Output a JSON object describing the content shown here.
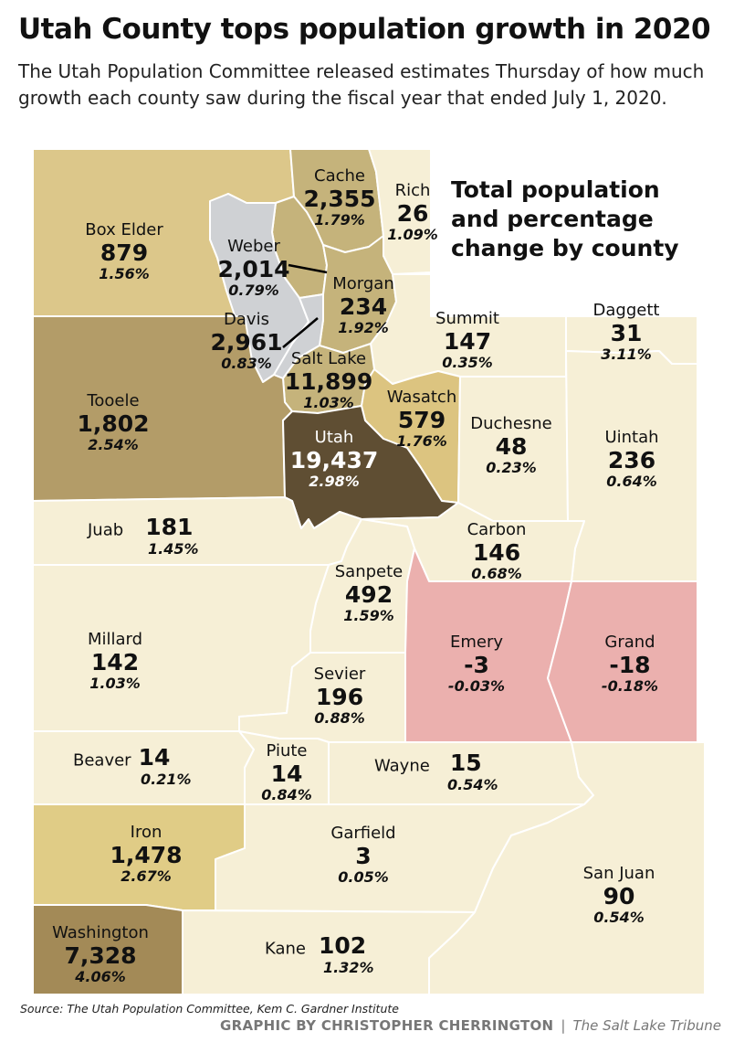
{
  "header": {
    "title": "Utah County tops population growth in 2020",
    "subtitle": "The Utah Population Committee released estimates Thursday of how much growth each county saw during the fiscal year that ended  July 1, 2020.",
    "legend_title_1": "Total population",
    "legend_title_2": "and percentage",
    "legend_title_3": "change by county"
  },
  "colors": {
    "lightest": "#f6efd6",
    "light": "#e9d892",
    "medium_light": "#dcc480",
    "medium": "#c5b37b",
    "medium_dark": "#b39c5c",
    "dark": "#a38a57",
    "darkest": "#5f4e33",
    "gray": "#cfd1d4",
    "negative": "#ebb0ae"
  },
  "counties": {
    "cache": {
      "name": "Cache",
      "value": "2,355",
      "pct": "1.79%"
    },
    "rich": {
      "name": "Rich",
      "value": "26",
      "pct": "1.09%"
    },
    "box_elder": {
      "name": "Box Elder",
      "value": "879",
      "pct": "1.56%"
    },
    "weber": {
      "name": "Weber",
      "value": "2,014",
      "pct": "0.79%"
    },
    "morgan": {
      "name": "Morgan",
      "value": "234",
      "pct": "1.92%"
    },
    "davis": {
      "name": "Davis",
      "value": "2,961",
      "pct": "0.83%"
    },
    "summit": {
      "name": "Summit",
      "value": "147",
      "pct": "0.35%"
    },
    "daggett": {
      "name": "Daggett",
      "value": "31",
      "pct": "3.11%"
    },
    "salt_lake": {
      "name": "Salt Lake",
      "value": "11,899",
      "pct": "1.03%"
    },
    "tooele": {
      "name": "Tooele",
      "value": "1,802",
      "pct": "2.54%"
    },
    "wasatch": {
      "name": "Wasatch",
      "value": "579",
      "pct": "1.76%"
    },
    "utah": {
      "name": "Utah",
      "value": "19,437",
      "pct": "2.98%"
    },
    "duchesne": {
      "name": "Duchesne",
      "value": "48",
      "pct": "0.23%"
    },
    "uintah": {
      "name": "Uintah",
      "value": "236",
      "pct": "0.64%"
    },
    "juab": {
      "name": "Juab",
      "value": "181",
      "pct": "1.45%"
    },
    "carbon": {
      "name": "Carbon",
      "value": "146",
      "pct": "0.68%"
    },
    "sanpete": {
      "name": "Sanpete",
      "value": "492",
      "pct": "1.59%"
    },
    "millard": {
      "name": "Millard",
      "value": "142",
      "pct": "1.03%"
    },
    "emery": {
      "name": "Emery",
      "value": "-3",
      "pct": "-0.03%"
    },
    "grand": {
      "name": "Grand",
      "value": "-18",
      "pct": "-0.18%"
    },
    "sevier": {
      "name": "Sevier",
      "value": "196",
      "pct": "0.88%"
    },
    "beaver": {
      "name": "Beaver",
      "value": "14",
      "pct": "0.21%"
    },
    "piute": {
      "name": "Piute",
      "value": "14",
      "pct": "0.84%"
    },
    "wayne": {
      "name": "Wayne",
      "value": "15",
      "pct": "0.54%"
    },
    "iron": {
      "name": "Iron",
      "value": "1,478",
      "pct": "2.67%"
    },
    "garfield": {
      "name": "Garfield",
      "value": "3",
      "pct": "0.05%"
    },
    "san_juan": {
      "name": "San Juan",
      "value": "90",
      "pct": "0.54%"
    },
    "washington": {
      "name": "Washington",
      "value": "7,328",
      "pct": "4.06%"
    },
    "kane": {
      "name": "Kane",
      "value": "102",
      "pct": "1.32%"
    }
  },
  "footer": {
    "source": "Source: The Utah Population Committee, Kem C. Gardner Institute",
    "credit": "GRAPHIC BY CHRISTOPHER CHERRINGTON",
    "separator": "|",
    "publication": "The Salt Lake Tribune"
  }
}
